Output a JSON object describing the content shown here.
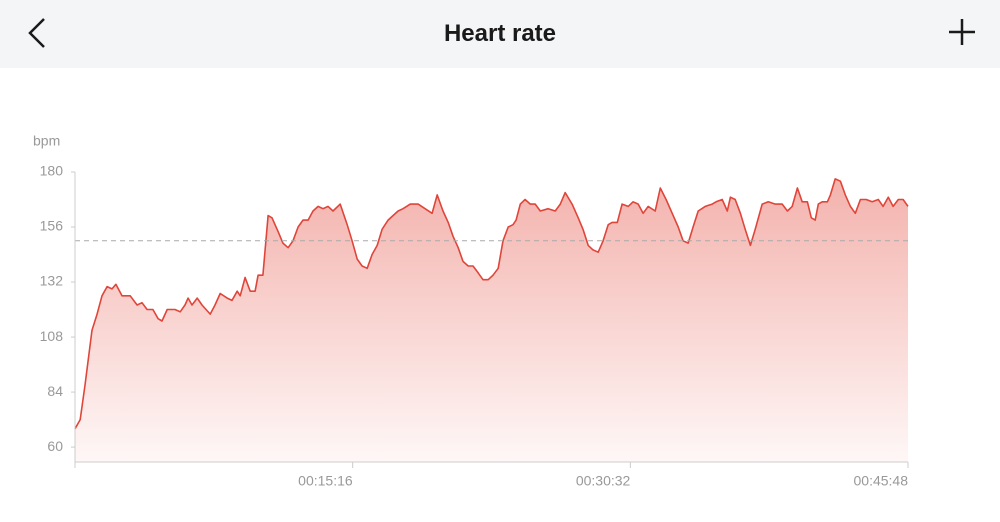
{
  "header": {
    "title": "Heart rate"
  },
  "chart_data": {
    "type": "area",
    "y_label": "bpm",
    "color": "#e0453a",
    "xlim": [
      0,
      2748
    ],
    "ylim": [
      53.5,
      180
    ],
    "yticks": [
      60,
      84,
      108,
      132,
      156,
      180
    ],
    "xticks": [
      {
        "value": 916,
        "label": "00:15:16"
      },
      {
        "value": 1832,
        "label": "00:30:32"
      },
      {
        "value": 2748,
        "label": "00:45:48"
      }
    ],
    "reference_line": 150,
    "x": [
      0,
      17,
      33,
      56,
      73,
      89,
      106,
      122,
      135,
      155,
      182,
      205,
      221,
      238,
      257,
      274,
      287,
      304,
      330,
      347,
      363,
      373,
      386,
      403,
      419,
      446,
      462,
      479,
      502,
      518,
      535,
      545,
      561,
      578,
      594,
      604,
      620,
      637,
      650,
      670,
      686,
      703,
      719,
      736,
      752,
      769,
      785,
      802,
      818,
      835,
      851,
      875,
      898,
      914,
      931,
      947,
      964,
      980,
      997,
      1013,
      1033,
      1049,
      1066,
      1082,
      1106,
      1132,
      1155,
      1178,
      1195,
      1214,
      1231,
      1247,
      1264,
      1280,
      1297,
      1313,
      1330,
      1346,
      1363,
      1379,
      1396,
      1412,
      1429,
      1445,
      1455,
      1469,
      1485,
      1502,
      1518,
      1535,
      1561,
      1584,
      1601,
      1617,
      1640,
      1660,
      1676,
      1693,
      1709,
      1726,
      1742,
      1759,
      1772,
      1789,
      1805,
      1825,
      1841,
      1858,
      1874,
      1891,
      1914,
      1931,
      1950,
      1970,
      1990,
      2006,
      2023,
      2039,
      2056,
      2079,
      2102,
      2115,
      2135,
      2152,
      2162,
      2178,
      2195,
      2211,
      2228,
      2244,
      2267,
      2287,
      2310,
      2333,
      2350,
      2366,
      2383,
      2399,
      2416,
      2429,
      2442,
      2452,
      2465,
      2482,
      2492,
      2508,
      2525,
      2541,
      2558,
      2574,
      2591,
      2610,
      2630,
      2650,
      2666,
      2683,
      2699,
      2716,
      2732,
      2748
    ],
    "values": [
      68,
      72,
      87,
      111,
      118,
      126,
      130,
      129,
      131,
      126,
      126,
      122,
      123,
      120,
      120,
      116,
      115,
      120,
      120,
      119,
      122,
      125,
      122,
      125,
      122,
      118,
      122,
      127,
      125,
      124,
      128,
      126,
      134,
      128,
      128,
      135,
      135,
      161,
      160,
      154,
      149,
      147,
      150,
      156,
      159,
      159,
      163,
      165,
      164,
      165,
      163,
      166,
      157,
      150,
      142,
      139,
      138,
      144,
      148,
      155,
      159,
      161,
      163,
      164,
      166,
      166,
      164,
      162,
      170,
      163,
      158,
      152,
      147,
      141,
      139,
      139,
      136,
      133,
      133,
      135,
      138,
      150,
      156,
      157,
      159,
      166,
      168,
      166,
      166,
      163,
      164,
      163,
      166,
      171,
      166,
      160,
      155,
      148,
      146,
      145,
      150,
      157,
      158,
      158,
      166,
      165,
      167,
      166,
      162,
      165,
      163,
      173,
      168,
      162,
      156,
      150,
      149,
      156,
      163,
      165,
      166,
      167,
      168,
      163,
      169,
      168,
      162,
      155,
      148,
      155,
      166,
      167,
      166,
      166,
      163,
      165,
      173,
      167,
      167,
      160,
      159,
      166,
      167,
      167,
      170,
      177,
      176,
      170,
      165,
      162,
      168,
      168,
      167,
      168,
      165,
      169,
      165,
      168,
      168,
      165
    ]
  }
}
